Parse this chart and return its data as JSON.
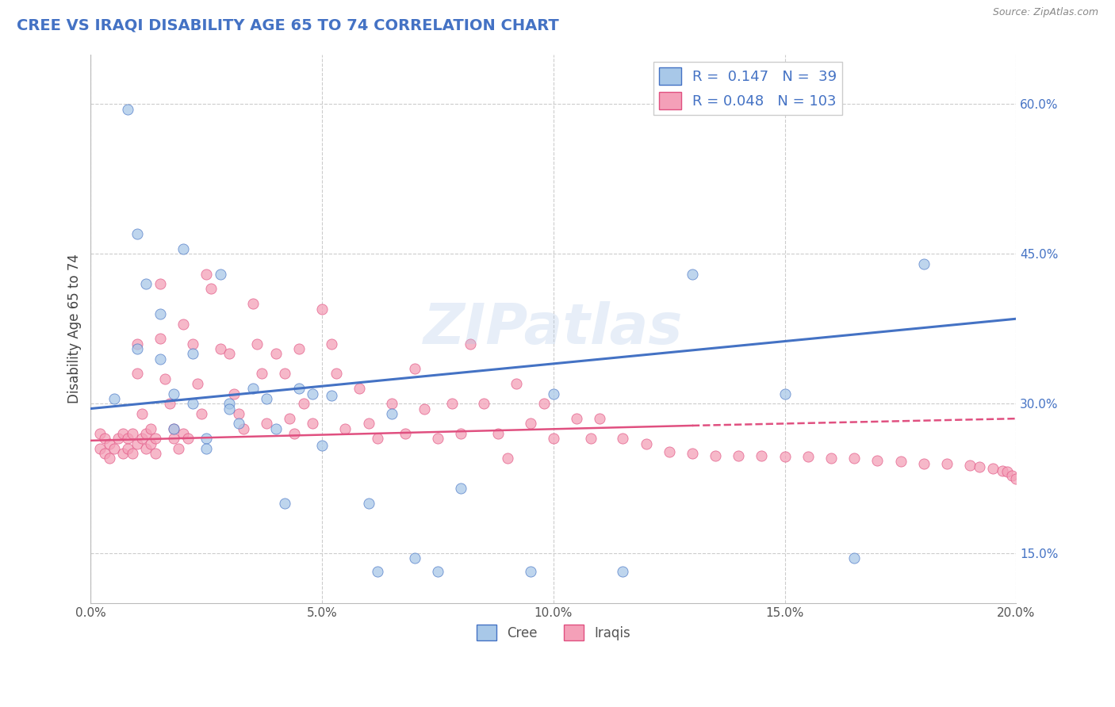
{
  "title": "CREE VS IRAQI DISABILITY AGE 65 TO 74 CORRELATION CHART",
  "source_text": "Source: ZipAtlas.com",
  "ylabel": "Disability Age 65 to 74",
  "xlim": [
    0.0,
    0.2
  ],
  "ylim": [
    0.1,
    0.65
  ],
  "xticks": [
    0.0,
    0.05,
    0.1,
    0.15,
    0.2
  ],
  "xtick_labels": [
    "0.0%",
    "5.0%",
    "10.0%",
    "15.0%",
    "20.0%"
  ],
  "yticks": [
    0.15,
    0.3,
    0.45,
    0.6
  ],
  "ytick_labels": [
    "15.0%",
    "30.0%",
    "45.0%",
    "60.0%"
  ],
  "cree_R": 0.147,
  "cree_N": 39,
  "iraqi_R": 0.048,
  "iraqi_N": 103,
  "cree_color": "#a8c8e8",
  "iraqi_color": "#f4a0b8",
  "cree_line_color": "#4472C4",
  "iraqi_line_color": "#e05080",
  "background_color": "#ffffff",
  "grid_color": "#cccccc",
  "title_color": "#4472C4",
  "cree_x": [
    0.005,
    0.008,
    0.01,
    0.01,
    0.012,
    0.015,
    0.015,
    0.018,
    0.018,
    0.02,
    0.022,
    0.022,
    0.025,
    0.025,
    0.028,
    0.03,
    0.03,
    0.032,
    0.035,
    0.038,
    0.04,
    0.042,
    0.045,
    0.048,
    0.05,
    0.052,
    0.06,
    0.062,
    0.065,
    0.07,
    0.075,
    0.08,
    0.095,
    0.1,
    0.115,
    0.13,
    0.15,
    0.165,
    0.18
  ],
  "cree_y": [
    0.305,
    0.595,
    0.47,
    0.355,
    0.42,
    0.39,
    0.345,
    0.31,
    0.275,
    0.455,
    0.35,
    0.3,
    0.265,
    0.255,
    0.43,
    0.3,
    0.295,
    0.28,
    0.315,
    0.305,
    0.275,
    0.2,
    0.315,
    0.31,
    0.258,
    0.308,
    0.2,
    0.132,
    0.29,
    0.145,
    0.132,
    0.215,
    0.132,
    0.31,
    0.132,
    0.43,
    0.31,
    0.145,
    0.44
  ],
  "iraqi_x": [
    0.002,
    0.002,
    0.003,
    0.003,
    0.004,
    0.004,
    0.005,
    0.006,
    0.007,
    0.007,
    0.008,
    0.008,
    0.009,
    0.009,
    0.01,
    0.01,
    0.01,
    0.011,
    0.011,
    0.012,
    0.012,
    0.013,
    0.013,
    0.014,
    0.014,
    0.015,
    0.015,
    0.016,
    0.017,
    0.018,
    0.018,
    0.019,
    0.02,
    0.02,
    0.021,
    0.022,
    0.023,
    0.024,
    0.025,
    0.026,
    0.028,
    0.03,
    0.031,
    0.032,
    0.033,
    0.035,
    0.036,
    0.037,
    0.038,
    0.04,
    0.042,
    0.043,
    0.044,
    0.045,
    0.046,
    0.048,
    0.05,
    0.052,
    0.053,
    0.055,
    0.058,
    0.06,
    0.062,
    0.065,
    0.068,
    0.07,
    0.072,
    0.075,
    0.078,
    0.08,
    0.082,
    0.085,
    0.088,
    0.09,
    0.092,
    0.095,
    0.098,
    0.1,
    0.105,
    0.108,
    0.11,
    0.115,
    0.12,
    0.125,
    0.13,
    0.135,
    0.14,
    0.145,
    0.15,
    0.155,
    0.16,
    0.165,
    0.17,
    0.175,
    0.18,
    0.185,
    0.19,
    0.192,
    0.195,
    0.197,
    0.198,
    0.199,
    0.2
  ],
  "iraqi_y": [
    0.27,
    0.255,
    0.265,
    0.25,
    0.26,
    0.245,
    0.255,
    0.265,
    0.27,
    0.25,
    0.265,
    0.255,
    0.27,
    0.25,
    0.36,
    0.33,
    0.26,
    0.29,
    0.265,
    0.27,
    0.255,
    0.275,
    0.26,
    0.265,
    0.25,
    0.42,
    0.365,
    0.325,
    0.3,
    0.275,
    0.265,
    0.255,
    0.38,
    0.27,
    0.265,
    0.36,
    0.32,
    0.29,
    0.43,
    0.415,
    0.355,
    0.35,
    0.31,
    0.29,
    0.275,
    0.4,
    0.36,
    0.33,
    0.28,
    0.35,
    0.33,
    0.285,
    0.27,
    0.355,
    0.3,
    0.28,
    0.395,
    0.36,
    0.33,
    0.275,
    0.315,
    0.28,
    0.265,
    0.3,
    0.27,
    0.335,
    0.295,
    0.265,
    0.3,
    0.27,
    0.36,
    0.3,
    0.27,
    0.245,
    0.32,
    0.28,
    0.3,
    0.265,
    0.285,
    0.265,
    0.285,
    0.265,
    0.26,
    0.252,
    0.25,
    0.248,
    0.248,
    0.248,
    0.247,
    0.247,
    0.245,
    0.245,
    0.243,
    0.242,
    0.24,
    0.24,
    0.238,
    0.237,
    0.235,
    0.233,
    0.232,
    0.228,
    0.225
  ]
}
